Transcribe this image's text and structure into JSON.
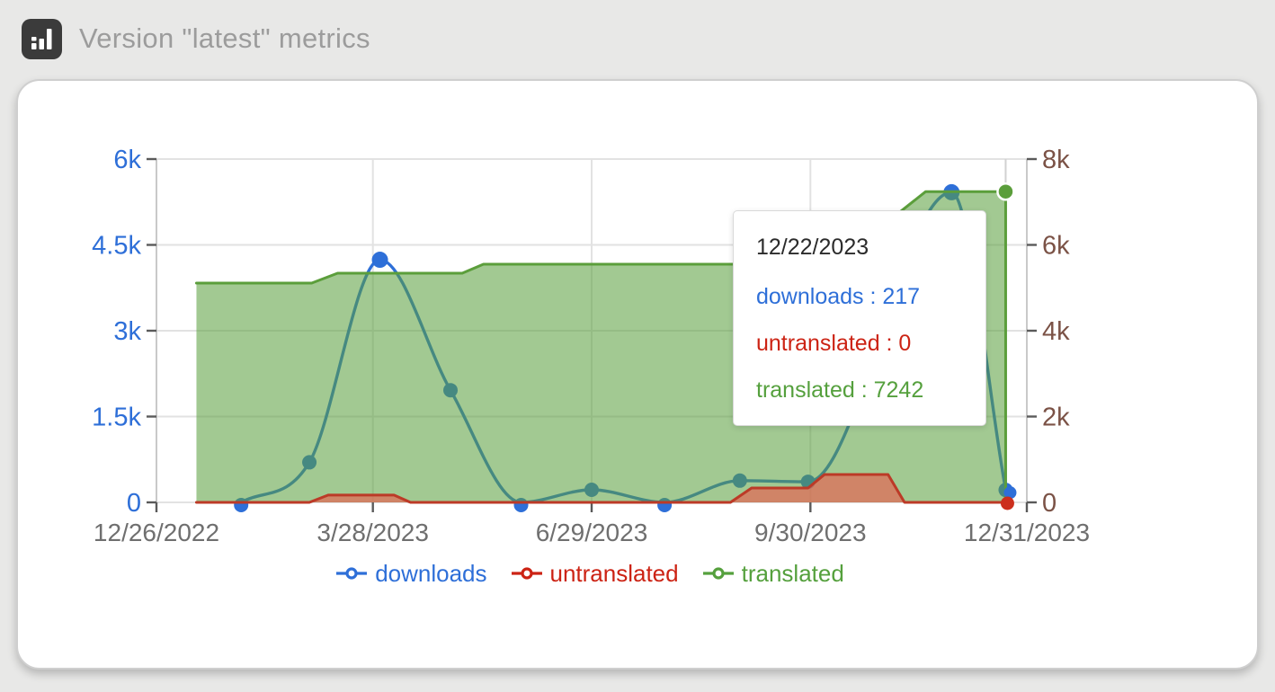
{
  "header": {
    "title": "Version \"latest\" metrics",
    "icon": "bar-chart-icon"
  },
  "tooltip": {
    "date": "12/22/2023",
    "rows": [
      {
        "series": "downloads",
        "value": 217,
        "text": "downloads : 217",
        "color": "#2e6fd8"
      },
      {
        "series": "untranslated",
        "value": 0,
        "text": "untranslated : 0",
        "color": "#cc2314"
      },
      {
        "series": "translated",
        "value": 7242,
        "text": "translated : 7242",
        "color": "#55a03d"
      }
    ]
  },
  "chart_data": {
    "type": "area",
    "title": "Version \"latest\" metrics",
    "grid": true,
    "legend_position": "bottom",
    "x_axis": {
      "ticks": [
        "12/26/2022",
        "3/28/2023",
        "6/29/2023",
        "9/30/2023",
        "12/31/2023"
      ],
      "range": [
        "12/26/2022",
        "12/31/2023"
      ],
      "label_color": "#6f6f6f"
    },
    "y_axis_left": {
      "series": "downloads",
      "max": 6000,
      "label_color": "#2e6fd8",
      "ticks": [
        {
          "label": "0",
          "value": 0
        },
        {
          "label": "1.5k",
          "value": 1500
        },
        {
          "label": "3k",
          "value": 3000
        },
        {
          "label": "4.5k",
          "value": 4500
        },
        {
          "label": "6k",
          "value": 6000
        }
      ]
    },
    "y_axis_right": {
      "series": "translated / untranslated",
      "max": 8000,
      "label_color": "#7b5246",
      "ticks": [
        {
          "label": "0",
          "value": 0
        },
        {
          "label": "2k",
          "value": 2000
        },
        {
          "label": "4k",
          "value": 4000
        },
        {
          "label": "6k",
          "value": 6000
        },
        {
          "label": "8k",
          "value": 8000
        }
      ]
    },
    "series": [
      {
        "name": "downloads",
        "type": "line",
        "axis": "left",
        "color": "#2e6fd8",
        "points": [
          [
            "1/31/2023",
            0
          ],
          [
            "3/1/2023",
            700
          ],
          [
            "3/31/2023",
            4240
          ],
          [
            "4/30/2023",
            1960
          ],
          [
            "5/30/2023",
            0
          ],
          [
            "6/29/2023",
            220
          ],
          [
            "7/30/2023",
            0
          ],
          [
            "8/31/2023",
            380
          ],
          [
            "9/29/2023",
            360
          ],
          [
            "11/29/2023",
            5420
          ],
          [
            "12/22/2023",
            217
          ]
        ]
      },
      {
        "name": "translated",
        "type": "area",
        "axis": "right",
        "color": "#5b9e3b",
        "fill": "rgba(90,158,60,0.56)",
        "points": [
          [
            "1/12/2023",
            5110
          ],
          [
            "3/2/2023",
            5110
          ],
          [
            "3/13/2023",
            5340
          ],
          [
            "5/5/2023",
            5340
          ],
          [
            "5/14/2023",
            5550
          ],
          [
            "10/10/2023",
            5550
          ],
          [
            "11/18/2023",
            7242
          ],
          [
            "12/22/2023",
            7242
          ]
        ]
      },
      {
        "name": "untranslated",
        "type": "area",
        "axis": "right",
        "color": "#bc3a27",
        "fill": "rgba(234,95,80,0.65)",
        "points": [
          [
            "1/12/2023",
            0
          ],
          [
            "3/1/2023",
            0
          ],
          [
            "3/9/2023",
            170
          ],
          [
            "4/6/2023",
            170
          ],
          [
            "4/13/2023",
            0
          ],
          [
            "8/27/2023",
            0
          ],
          [
            "9/5/2023",
            335
          ],
          [
            "9/29/2023",
            335
          ],
          [
            "10/6/2023",
            650
          ],
          [
            "11/2/2023",
            650
          ],
          [
            "11/9/2023",
            0
          ],
          [
            "12/22/2023",
            0
          ]
        ]
      }
    ],
    "hover": {
      "date": "12/22/2023",
      "downloads": 217,
      "untranslated": 0,
      "translated": 7242,
      "crosshair_color": "#d2d2d2"
    },
    "legend": [
      {
        "label": "downloads",
        "color": "#2e6fd8"
      },
      {
        "label": "untranslated",
        "color": "#cc2314"
      },
      {
        "label": "translated",
        "color": "#55a03d"
      }
    ]
  }
}
